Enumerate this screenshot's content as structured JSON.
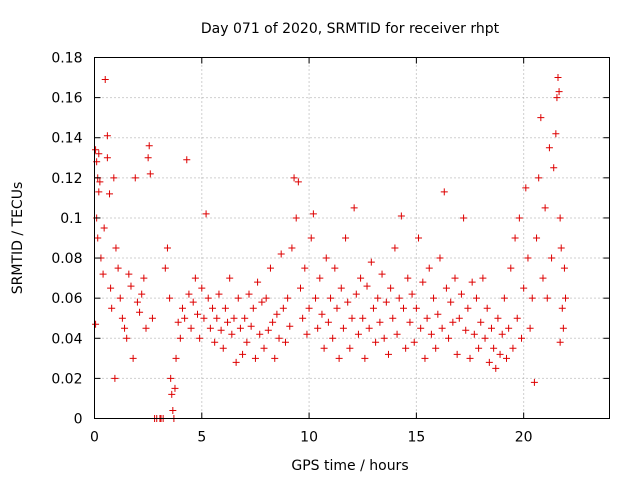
{
  "chart_data": {
    "type": "scatter",
    "title": "Day 071 of 2020, SRMTID for receiver rhpt",
    "xlabel": "GPS time / hours",
    "ylabel": "SRMTID / TECUs",
    "xlim": [
      0,
      24
    ],
    "ylim": [
      0,
      0.18
    ],
    "x_ticks": [
      0,
      5,
      10,
      15,
      20
    ],
    "x_tick_labels": [
      "0",
      "5",
      "10",
      "15",
      "20"
    ],
    "y_ticks": [
      0,
      0.02,
      0.04,
      0.06,
      0.08,
      0.1,
      0.12,
      0.14,
      0.16,
      0.18
    ],
    "y_tick_labels": [
      "0",
      "0.02",
      "0.04",
      "0.06",
      "0.08",
      "0.1",
      "0.12",
      "0.14",
      "0.16",
      "0.18"
    ],
    "grid": true,
    "marker": "plus",
    "color": "#dd0000",
    "series": [
      {
        "name": "",
        "points": [
          [
            0.05,
            0.134
          ],
          [
            0.1,
            0.128
          ],
          [
            0.15,
            0.12
          ],
          [
            0.2,
            0.132
          ],
          [
            0.1,
            0.1
          ],
          [
            0.15,
            0.09
          ],
          [
            0.2,
            0.113
          ],
          [
            0.25,
            0.118
          ],
          [
            0.3,
            0.08
          ],
          [
            0.05,
            0.047
          ],
          [
            0.4,
            0.072
          ],
          [
            0.45,
            0.095
          ],
          [
            0.5,
            0.169
          ],
          [
            0.6,
            0.141
          ],
          [
            0.6,
            0.13
          ],
          [
            0.7,
            0.112
          ],
          [
            0.75,
            0.065
          ],
          [
            0.8,
            0.055
          ],
          [
            0.9,
            0.12
          ],
          [
            0.95,
            0.02
          ],
          [
            1.0,
            0.085
          ],
          [
            1.1,
            0.075
          ],
          [
            1.2,
            0.06
          ],
          [
            1.3,
            0.05
          ],
          [
            1.4,
            0.045
          ],
          [
            1.5,
            0.04
          ],
          [
            1.6,
            0.072
          ],
          [
            1.7,
            0.066
          ],
          [
            1.8,
            0.03
          ],
          [
            1.9,
            0.12
          ],
          [
            2.0,
            0.058
          ],
          [
            2.1,
            0.053
          ],
          [
            2.2,
            0.062
          ],
          [
            2.3,
            0.07
          ],
          [
            2.4,
            0.045
          ],
          [
            2.5,
            0.13
          ],
          [
            2.55,
            0.136
          ],
          [
            2.6,
            0.122
          ],
          [
            2.7,
            0.05
          ],
          [
            2.8,
            0.0
          ],
          [
            2.9,
            0.0
          ],
          [
            3.05,
            0.0
          ],
          [
            3.1,
            0.0
          ],
          [
            3.2,
            0.0
          ],
          [
            3.3,
            0.075
          ],
          [
            3.4,
            0.085
          ],
          [
            3.5,
            0.06
          ],
          [
            3.55,
            0.02
          ],
          [
            3.6,
            0.012
          ],
          [
            3.65,
            0.004
          ],
          [
            3.7,
            0.0
          ],
          [
            3.75,
            0.015
          ],
          [
            3.8,
            0.03
          ],
          [
            3.9,
            0.048
          ],
          [
            4.0,
            0.04
          ],
          [
            4.1,
            0.055
          ],
          [
            4.2,
            0.05
          ],
          [
            4.3,
            0.129
          ],
          [
            4.4,
            0.062
          ],
          [
            4.5,
            0.045
          ],
          [
            4.6,
            0.058
          ],
          [
            4.7,
            0.07
          ],
          [
            4.8,
            0.052
          ],
          [
            4.9,
            0.04
          ],
          [
            5.0,
            0.065
          ],
          [
            5.1,
            0.05
          ],
          [
            5.2,
            0.102
          ],
          [
            5.3,
            0.06
          ],
          [
            5.4,
            0.045
          ],
          [
            5.5,
            0.055
          ],
          [
            5.6,
            0.038
          ],
          [
            5.7,
            0.05
          ],
          [
            5.8,
            0.062
          ],
          [
            5.9,
            0.044
          ],
          [
            6.0,
            0.035
          ],
          [
            6.1,
            0.055
          ],
          [
            6.2,
            0.048
          ],
          [
            6.3,
            0.07
          ],
          [
            6.4,
            0.042
          ],
          [
            6.5,
            0.05
          ],
          [
            6.6,
            0.028
          ],
          [
            6.7,
            0.06
          ],
          [
            6.8,
            0.045
          ],
          [
            6.9,
            0.032
          ],
          [
            7.0,
            0.05
          ],
          [
            7.1,
            0.038
          ],
          [
            7.2,
            0.062
          ],
          [
            7.3,
            0.046
          ],
          [
            7.4,
            0.055
          ],
          [
            7.5,
            0.03
          ],
          [
            7.6,
            0.068
          ],
          [
            7.7,
            0.042
          ],
          [
            7.8,
            0.058
          ],
          [
            7.9,
            0.035
          ],
          [
            8.0,
            0.06
          ],
          [
            8.1,
            0.044
          ],
          [
            8.2,
            0.075
          ],
          [
            8.3,
            0.048
          ],
          [
            8.4,
            0.03
          ],
          [
            8.5,
            0.052
          ],
          [
            8.6,
            0.04
          ],
          [
            8.7,
            0.082
          ],
          [
            8.8,
            0.055
          ],
          [
            8.9,
            0.038
          ],
          [
            9.0,
            0.06
          ],
          [
            9.1,
            0.046
          ],
          [
            9.2,
            0.085
          ],
          [
            9.3,
            0.12
          ],
          [
            9.4,
            0.1
          ],
          [
            9.5,
            0.118
          ],
          [
            9.6,
            0.065
          ],
          [
            9.7,
            0.05
          ],
          [
            9.8,
            0.075
          ],
          [
            9.9,
            0.042
          ],
          [
            10.0,
            0.055
          ],
          [
            10.1,
            0.09
          ],
          [
            10.2,
            0.102
          ],
          [
            10.3,
            0.06
          ],
          [
            10.4,
            0.045
          ],
          [
            10.5,
            0.07
          ],
          [
            10.6,
            0.052
          ],
          [
            10.7,
            0.035
          ],
          [
            10.8,
            0.08
          ],
          [
            10.9,
            0.048
          ],
          [
            11.0,
            0.06
          ],
          [
            11.1,
            0.04
          ],
          [
            11.2,
            0.075
          ],
          [
            11.3,
            0.055
          ],
          [
            11.4,
            0.03
          ],
          [
            11.5,
            0.065
          ],
          [
            11.6,
            0.045
          ],
          [
            11.7,
            0.09
          ],
          [
            11.8,
            0.058
          ],
          [
            11.9,
            0.035
          ],
          [
            12.0,
            0.05
          ],
          [
            12.1,
            0.105
          ],
          [
            12.2,
            0.062
          ],
          [
            12.3,
            0.042
          ],
          [
            12.4,
            0.07
          ],
          [
            12.5,
            0.05
          ],
          [
            12.6,
            0.03
          ],
          [
            12.7,
            0.066
          ],
          [
            12.8,
            0.045
          ],
          [
            12.9,
            0.078
          ],
          [
            13.0,
            0.055
          ],
          [
            13.1,
            0.038
          ],
          [
            13.2,
            0.06
          ],
          [
            13.3,
            0.048
          ],
          [
            13.4,
            0.072
          ],
          [
            13.5,
            0.04
          ],
          [
            13.6,
            0.058
          ],
          [
            13.7,
            0.032
          ],
          [
            13.8,
            0.065
          ],
          [
            13.9,
            0.05
          ],
          [
            14.0,
            0.085
          ],
          [
            14.1,
            0.042
          ],
          [
            14.2,
            0.06
          ],
          [
            14.3,
            0.101
          ],
          [
            14.4,
            0.055
          ],
          [
            14.5,
            0.035
          ],
          [
            14.6,
            0.07
          ],
          [
            14.7,
            0.048
          ],
          [
            14.8,
            0.062
          ],
          [
            14.9,
            0.038
          ],
          [
            15.0,
            0.055
          ],
          [
            15.1,
            0.09
          ],
          [
            15.2,
            0.045
          ],
          [
            15.3,
            0.068
          ],
          [
            15.4,
            0.03
          ],
          [
            15.5,
            0.05
          ],
          [
            15.6,
            0.075
          ],
          [
            15.7,
            0.042
          ],
          [
            15.8,
            0.06
          ],
          [
            15.9,
            0.035
          ],
          [
            16.0,
            0.052
          ],
          [
            16.1,
            0.08
          ],
          [
            16.2,
            0.045
          ],
          [
            16.3,
            0.113
          ],
          [
            16.4,
            0.065
          ],
          [
            16.5,
            0.04
          ],
          [
            16.6,
            0.058
          ],
          [
            16.7,
            0.048
          ],
          [
            16.8,
            0.07
          ],
          [
            16.9,
            0.032
          ],
          [
            17.0,
            0.05
          ],
          [
            17.1,
            0.062
          ],
          [
            17.2,
            0.1
          ],
          [
            17.3,
            0.044
          ],
          [
            17.4,
            0.055
          ],
          [
            17.5,
            0.03
          ],
          [
            17.6,
            0.068
          ],
          [
            17.7,
            0.042
          ],
          [
            17.8,
            0.06
          ],
          [
            17.9,
            0.035
          ],
          [
            18.0,
            0.048
          ],
          [
            18.1,
            0.07
          ],
          [
            18.2,
            0.04
          ],
          [
            18.3,
            0.055
          ],
          [
            18.4,
            0.028
          ],
          [
            18.5,
            0.045
          ],
          [
            18.6,
            0.035
          ],
          [
            18.7,
            0.025
          ],
          [
            18.8,
            0.05
          ],
          [
            18.9,
            0.032
          ],
          [
            19.0,
            0.042
          ],
          [
            19.1,
            0.06
          ],
          [
            19.2,
            0.03
          ],
          [
            19.3,
            0.045
          ],
          [
            19.4,
            0.075
          ],
          [
            19.5,
            0.035
          ],
          [
            19.6,
            0.09
          ],
          [
            19.7,
            0.05
          ],
          [
            19.8,
            0.1
          ],
          [
            19.9,
            0.04
          ],
          [
            20.0,
            0.065
          ],
          [
            20.1,
            0.115
          ],
          [
            20.2,
            0.08
          ],
          [
            20.3,
            0.045
          ],
          [
            20.4,
            0.06
          ],
          [
            20.5,
            0.018
          ],
          [
            20.6,
            0.09
          ],
          [
            20.7,
            0.12
          ],
          [
            20.8,
            0.15
          ],
          [
            20.9,
            0.07
          ],
          [
            21.0,
            0.105
          ],
          [
            21.1,
            0.06
          ],
          [
            21.2,
            0.135
          ],
          [
            21.3,
            0.08
          ],
          [
            21.4,
            0.125
          ],
          [
            21.5,
            0.142
          ],
          [
            21.55,
            0.16
          ],
          [
            21.6,
            0.17
          ],
          [
            21.65,
            0.163
          ],
          [
            21.7,
            0.1
          ],
          [
            21.75,
            0.085
          ],
          [
            21.8,
            0.055
          ],
          [
            21.85,
            0.045
          ],
          [
            21.9,
            0.075
          ],
          [
            21.95,
            0.06
          ],
          [
            21.7,
            0.038
          ]
        ]
      }
    ]
  }
}
